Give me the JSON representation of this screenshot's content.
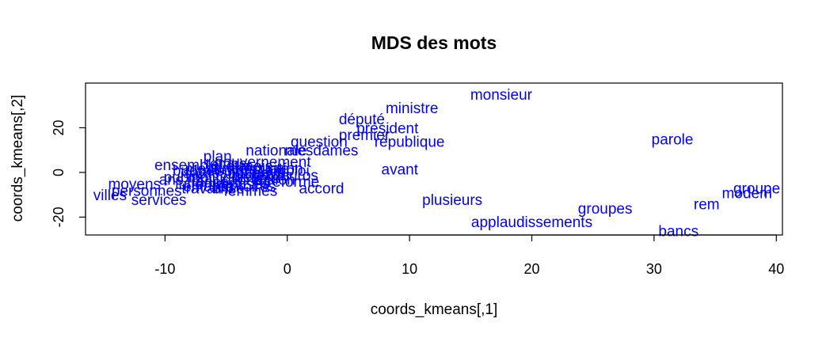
{
  "chart_data": {
    "type": "scatter",
    "title": "MDS des mots",
    "xlabel": "coords_kmeans[,1]",
    "ylabel": "coords_kmeans[,2]",
    "xlim": [
      -16.5,
      40.5
    ],
    "ylim": [
      -28,
      40
    ],
    "xticks": [
      -10,
      0,
      10,
      20,
      30,
      40
    ],
    "yticks": [
      -20,
      0,
      20
    ],
    "point_color": "#0000ff",
    "points": [
      {
        "label": "monsieur",
        "x": 17.5,
        "y": 35
      },
      {
        "label": "ministre",
        "x": 10.2,
        "y": 29
      },
      {
        "label": "député",
        "x": 6.1,
        "y": 24
      },
      {
        "label": "président",
        "x": 8.2,
        "y": 20
      },
      {
        "label": "premier",
        "x": 6.3,
        "y": 17
      },
      {
        "label": "république",
        "x": 10.0,
        "y": 14
      },
      {
        "label": "question",
        "x": 2.6,
        "y": 14
      },
      {
        "label": "nationale",
        "x": -0.9,
        "y": 10
      },
      {
        "label": "mesdames",
        "x": 2.8,
        "y": 10
      },
      {
        "label": "parole",
        "x": 31.5,
        "y": 15
      },
      {
        "label": "plan",
        "x": -5.7,
        "y": 7.5
      },
      {
        "label": "ensemble",
        "x": -8.2,
        "y": 3.5
      },
      {
        "label": "avant",
        "x": 9.2,
        "y": 1.5
      },
      {
        "label": "accord",
        "x": 2.8,
        "y": -7
      },
      {
        "label": "groupe",
        "x": 38.4,
        "y": -7
      },
      {
        "label": "modem",
        "x": 37.6,
        "y": -9
      },
      {
        "label": "rem",
        "x": 34.3,
        "y": -14
      },
      {
        "label": "groupes",
        "x": 26.0,
        "y": -16
      },
      {
        "label": "plusieurs",
        "x": 13.5,
        "y": -12
      },
      {
        "label": "applaudissements",
        "x": 20.0,
        "y": -22
      },
      {
        "label": "bancs",
        "x": 32.0,
        "y": -26
      },
      {
        "label": "villes",
        "x": -14.5,
        "y": -10
      },
      {
        "label": "moyens",
        "x": -12.5,
        "y": -5
      },
      {
        "label": "services",
        "x": -10.5,
        "y": -12
      },
      {
        "label": "personnes",
        "x": -11.5,
        "y": -8
      },
      {
        "label": "travail",
        "x": -7.0,
        "y": -7
      },
      {
        "label": "territoires",
        "x": -3.5,
        "y": -6
      },
      {
        "label": "politique",
        "x": -5.5,
        "y": -2
      },
      {
        "label": "sécurité",
        "x": -2.0,
        "y": 2
      },
      {
        "label": "santé",
        "x": -7.0,
        "y": 0
      },
      {
        "label": "état",
        "x": -4.0,
        "y": 3
      },
      {
        "label": "pays",
        "x": -1.5,
        "y": 0
      },
      {
        "label": "france",
        "x": -6.5,
        "y": -4
      },
      {
        "label": "projet",
        "x": -3.0,
        "y": -1
      },
      {
        "label": "gouvernement",
        "x": -2.0,
        "y": 5
      },
      {
        "label": "réforme",
        "x": 0.5,
        "y": -4
      },
      {
        "label": "action",
        "x": -1.0,
        "y": -3
      },
      {
        "label": "public",
        "x": -8.5,
        "y": -2
      },
      {
        "label": "emploi",
        "x": 0.0,
        "y": 1
      },
      {
        "label": "mesures",
        "x": -6.0,
        "y": 2
      },
      {
        "label": "entreprises",
        "x": -4.5,
        "y": -5
      },
      {
        "label": "soutien",
        "x": -3.5,
        "y": 0
      },
      {
        "label": "besoin",
        "x": -2.5,
        "y": -2
      },
      {
        "label": "lutte",
        "x": -8.0,
        "y": -5
      },
      {
        "label": "ans",
        "x": -9.5,
        "y": -3
      },
      {
        "label": "euros",
        "x": 1.0,
        "y": -1
      },
      {
        "label": "crise",
        "x": -4.8,
        "y": -7
      },
      {
        "label": "temps",
        "x": -5.0,
        "y": 4
      },
      {
        "label": "femmes",
        "x": -3.0,
        "y": -8
      },
      {
        "label": "situation",
        "x": -1.0,
        "y": 2
      },
      {
        "label": "enfants",
        "x": -6.5,
        "y": -6
      },
      {
        "label": "loi",
        "x": -2.0,
        "y": -4
      },
      {
        "label": "texte",
        "x": -1.5,
        "y": -1
      },
      {
        "label": "sujet",
        "x": -4.5,
        "y": 1
      },
      {
        "label": "budget",
        "x": -7.5,
        "y": 1
      },
      {
        "label": "mois",
        "x": -2.5,
        "y": 3
      },
      {
        "label": "cadre",
        "x": -3.8,
        "y": -3
      }
    ]
  }
}
